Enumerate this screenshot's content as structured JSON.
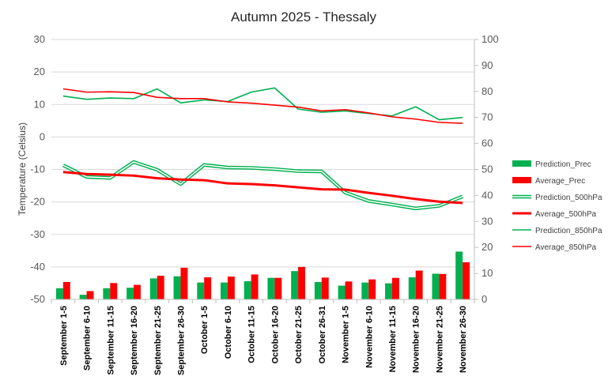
{
  "chart_data": {
    "type": "bar+line",
    "title": "Autumn 2025 - Thessaly",
    "ylabel": "Temperature (Celsius)",
    "ylim": [
      -50,
      30
    ],
    "yticks": [
      30,
      20,
      10,
      0,
      -10,
      -20,
      -30,
      -40,
      -50
    ],
    "y2lim": [
      0,
      100
    ],
    "y2ticks": [
      100,
      90,
      80,
      70,
      60,
      50,
      40,
      30,
      20,
      10,
      0
    ],
    "grid": "horizontal",
    "legend_position": "right",
    "categories": [
      "September 1-5",
      "September 6-10",
      "September 11-15",
      "September 16-20",
      "September 21-25",
      "September 26-30",
      "October 1-5",
      "October 6-10",
      "October 11-15",
      "October 16-20",
      "October 21-25",
      "October 26-31",
      "November 1-5",
      "November 6-10",
      "November 11-15",
      "November 16-20",
      "November 21-25",
      "November 26-30"
    ],
    "series": [
      {
        "name": "Prediction_Prec",
        "kind": "bar",
        "axis": "secondary",
        "color": "#00b050",
        "values": [
          4.3,
          1.8,
          4.3,
          4.5,
          8.1,
          8.9,
          6.5,
          6.5,
          7.0,
          8.3,
          10.9,
          6.7,
          5.3,
          6.5,
          6.2,
          8.5,
          9.9,
          18.4
        ]
      },
      {
        "name": "Average_Prec",
        "kind": "bar",
        "axis": "secondary",
        "color": "#ff0000",
        "values": [
          6.7,
          3.2,
          6.3,
          5.6,
          9.1,
          12.2,
          8.5,
          8.8,
          9.6,
          8.3,
          12.5,
          8.4,
          6.9,
          7.7,
          8.3,
          11.1,
          9.8,
          14.3
        ]
      },
      {
        "name": "Prediction_500hPa",
        "kind": "line-double",
        "axis": "primary",
        "color": "#00b050",
        "values": [
          -8.7,
          -12.3,
          -12.6,
          -7.7,
          -10.1,
          -14.5,
          -8.6,
          -9.4,
          -9.5,
          -9.9,
          -10.5,
          -10.6,
          -17.1,
          -19.7,
          -20.8,
          -22.0,
          -21.2,
          -18.3
        ]
      },
      {
        "name": "Average_500hPa",
        "kind": "line",
        "axis": "primary",
        "color": "#ff0000",
        "values": [
          -10.8,
          -11.4,
          -11.6,
          -11.9,
          -12.7,
          -13.1,
          -13.3,
          -14.3,
          -14.5,
          -14.9,
          -15.5,
          -16.1,
          -16.2,
          -17.2,
          -18.1,
          -19.1,
          -19.9,
          -20.3
        ]
      },
      {
        "name": "Prediction_850hPa",
        "kind": "line",
        "axis": "primary",
        "color": "#00b050",
        "values": [
          12.6,
          11.6,
          12.0,
          11.8,
          14.8,
          10.5,
          11.4,
          10.9,
          13.8,
          15.1,
          8.6,
          7.6,
          8.0,
          7.2,
          6.5,
          9.3,
          5.3,
          6.0
        ]
      },
      {
        "name": "Average_850hPa",
        "kind": "line",
        "axis": "primary",
        "color": "#ff0000",
        "values": [
          14.8,
          13.8,
          13.9,
          13.7,
          12.2,
          11.8,
          11.8,
          10.8,
          10.4,
          9.8,
          9.2,
          8.0,
          8.4,
          7.4,
          6.2,
          5.5,
          4.5,
          4.2
        ]
      }
    ]
  }
}
